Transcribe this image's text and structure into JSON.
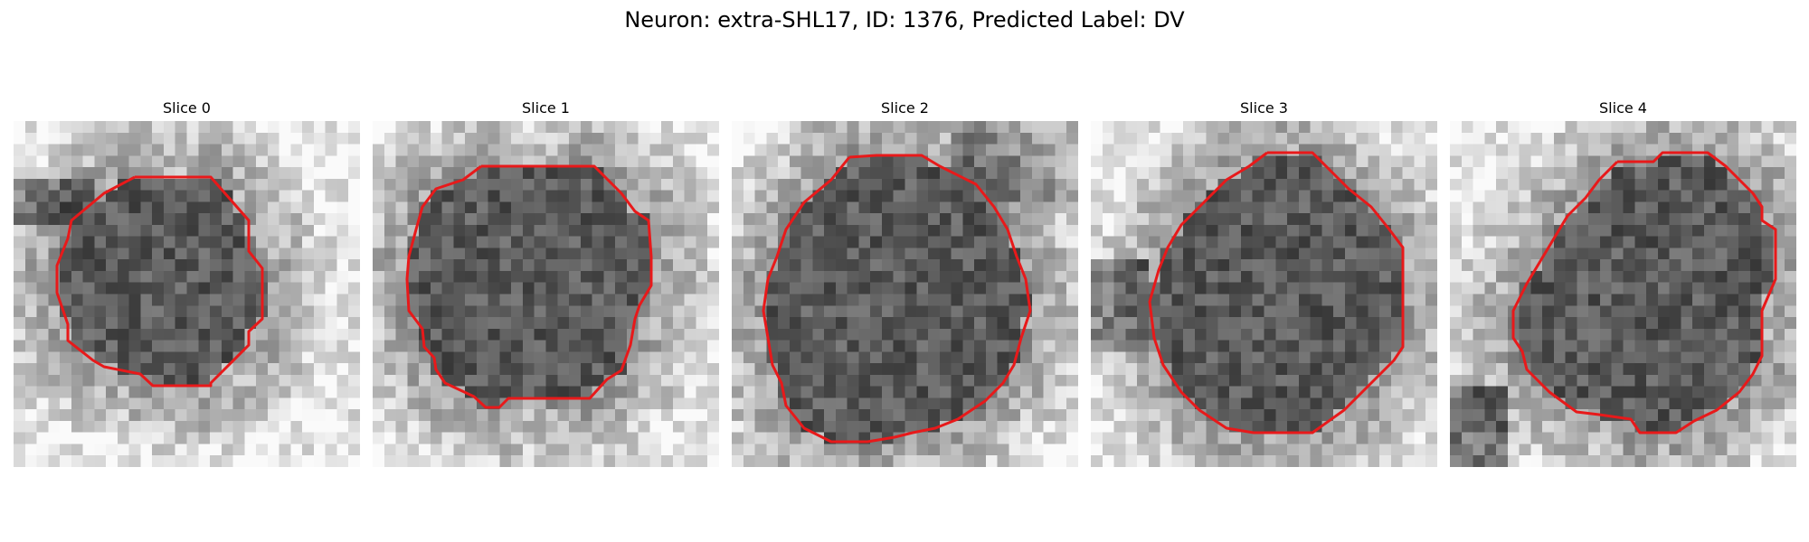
{
  "title": "Neuron: extra-SHL17, ID: 1376, Predicted Label: DV",
  "contour_color": "#e8191a",
  "slices": [
    {
      "label": "Slice 0"
    },
    {
      "label": "Slice 1"
    },
    {
      "label": "Slice 2"
    },
    {
      "label": "Slice 3"
    },
    {
      "label": "Slice 4"
    }
  ]
}
